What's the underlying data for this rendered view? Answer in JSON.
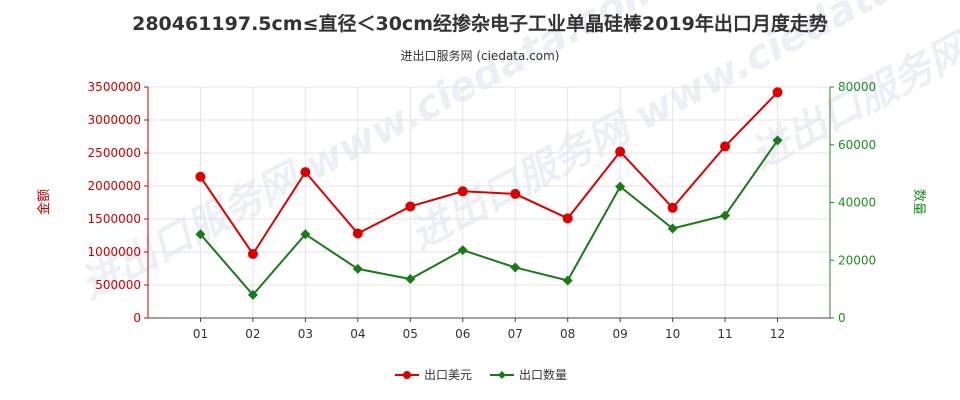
{
  "chart_data": {
    "type": "line",
    "title": "280461197.5cm≤直径＜30cm经掺杂电子工业单晶硅棒2019年出口月度走势",
    "subtitle": "进出口服务网 (ciedata.com)",
    "watermark": "进出口服务网 www.ciedata.com",
    "categories": [
      "01",
      "02",
      "03",
      "04",
      "05",
      "06",
      "07",
      "08",
      "09",
      "10",
      "11",
      "12"
    ],
    "y_left": {
      "label": "金额",
      "ylim": [
        0,
        3500000
      ],
      "ticks": [
        "0",
        "500000",
        "1000000",
        "1500000",
        "2000000",
        "2500000",
        "3000000",
        "3500000"
      ]
    },
    "y_right": {
      "label": "数量",
      "ylim": [
        0,
        80000
      ],
      "ticks": [
        "0",
        "20000",
        "40000",
        "60000",
        "80000"
      ]
    },
    "series": [
      {
        "name": "出口美元",
        "axis": "left",
        "color": "#dd0000",
        "marker": "circle",
        "values": [
          2140000,
          970000,
          2210000,
          1280000,
          1690000,
          1920000,
          1880000,
          1510000,
          2520000,
          1670000,
          2600000,
          3420000
        ]
      },
      {
        "name": "出口数量",
        "axis": "right",
        "color": "#1a7a1a",
        "marker": "diamond",
        "values": [
          29000,
          8000,
          29000,
          17000,
          13500,
          23500,
          17500,
          13000,
          45500,
          31000,
          35500,
          61500
        ]
      }
    ],
    "grid": true,
    "legend_position": "bottom-center"
  }
}
